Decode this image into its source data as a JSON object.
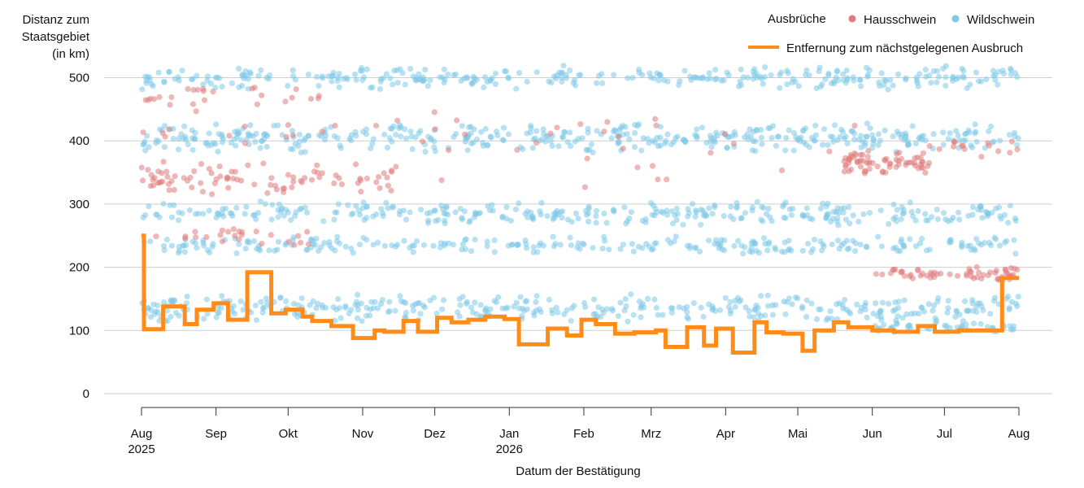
{
  "chart_data": {
    "type": "scatter",
    "ylabel_lines": [
      "Distanz zum",
      "Staatsgebiet",
      "(in km)"
    ],
    "xlabel": "Datum der Bestätigung",
    "ylim": [
      0,
      520
    ],
    "y_ticks": [
      0,
      100,
      200,
      300,
      400,
      500
    ],
    "x_range": [
      "2025-08-01",
      "2026-08-01"
    ],
    "x_ticks": [
      {
        "date": "2025-08-01",
        "label": "Aug",
        "sublabel": "2025"
      },
      {
        "date": "2025-09-01",
        "label": "Sep",
        "sublabel": ""
      },
      {
        "date": "2025-10-01",
        "label": "Okt",
        "sublabel": ""
      },
      {
        "date": "2025-11-01",
        "label": "Nov",
        "sublabel": ""
      },
      {
        "date": "2025-12-01",
        "label": "Dez",
        "sublabel": ""
      },
      {
        "date": "2026-01-01",
        "label": "Jan",
        "sublabel": "2026"
      },
      {
        "date": "2026-02-01",
        "label": "Feb",
        "sublabel": ""
      },
      {
        "date": "2026-03-01",
        "label": "Mrz",
        "sublabel": ""
      },
      {
        "date": "2026-04-01",
        "label": "Apr",
        "sublabel": ""
      },
      {
        "date": "2026-05-01",
        "label": "Mai",
        "sublabel": ""
      },
      {
        "date": "2026-06-01",
        "label": "Jun",
        "sublabel": ""
      },
      {
        "date": "2026-07-01",
        "label": "Jul",
        "sublabel": ""
      },
      {
        "date": "2026-08-01",
        "label": "Aug",
        "sublabel": ""
      }
    ],
    "legend": {
      "title": "Ausbrüche",
      "items": [
        {
          "name": "Hausschwein",
          "color": "#e07b7b"
        },
        {
          "name": "Wildschwein",
          "color": "#7ec8e8"
        }
      ],
      "line_label": "Entfernung zum nächstgelegenen Ausbruch",
      "line_color": "#ff8c1a"
    },
    "series": [
      {
        "name": "Hausschwein",
        "color": "#e07b7b",
        "clusters": [
          {
            "from": "2025-08-01",
            "to": "2025-10-15",
            "y": 470,
            "spread": 20,
            "count": 25
          },
          {
            "from": "2025-08-01",
            "to": "2025-11-15",
            "y": 340,
            "spread": 30,
            "count": 90
          },
          {
            "from": "2025-08-01",
            "to": "2025-10-10",
            "y": 250,
            "spread": 20,
            "count": 25
          },
          {
            "from": "2025-08-01",
            "to": "2025-12-20",
            "y": 420,
            "spread": 30,
            "count": 20
          },
          {
            "from": "2025-11-15",
            "to": "2026-05-31",
            "y": 380,
            "spread": 60,
            "count": 25
          },
          {
            "from": "2026-05-20",
            "to": "2026-06-25",
            "y": 365,
            "spread": 20,
            "count": 70
          },
          {
            "from": "2026-06-01",
            "to": "2026-08-01",
            "y": 190,
            "spread": 12,
            "count": 60
          },
          {
            "from": "2026-06-20",
            "to": "2026-08-01",
            "y": 390,
            "spread": 20,
            "count": 15
          }
        ]
      },
      {
        "name": "Wildschwein",
        "color": "#7ec8e8",
        "clusters": [
          {
            "from": "2025-08-01",
            "to": "2026-08-01",
            "y": 500,
            "spread": 20,
            "count": 320
          },
          {
            "from": "2025-08-01",
            "to": "2026-08-01",
            "y": 405,
            "spread": 25,
            "count": 420
          },
          {
            "from": "2025-08-01",
            "to": "2026-08-01",
            "y": 285,
            "spread": 20,
            "count": 330
          },
          {
            "from": "2025-08-01",
            "to": "2026-08-01",
            "y": 235,
            "spread": 15,
            "count": 260
          },
          {
            "from": "2025-08-01",
            "to": "2026-08-01",
            "y": 135,
            "spread": 25,
            "count": 380
          },
          {
            "from": "2026-06-01",
            "to": "2026-08-01",
            "y": 105,
            "spread": 10,
            "count": 40
          }
        ]
      }
    ],
    "line_steps": [
      [
        "2025-08-01",
        250
      ],
      [
        "2025-08-02",
        102
      ],
      [
        "2025-08-10",
        138
      ],
      [
        "2025-08-19",
        110
      ],
      [
        "2025-08-24",
        133
      ],
      [
        "2025-08-31",
        143
      ],
      [
        "2025-09-06",
        117
      ],
      [
        "2025-09-14",
        192
      ],
      [
        "2025-09-24",
        127
      ],
      [
        "2025-09-30",
        133
      ],
      [
        "2025-10-07",
        122
      ],
      [
        "2025-10-11",
        115
      ],
      [
        "2025-10-19",
        107
      ],
      [
        "2025-10-28",
        88
      ],
      [
        "2025-11-06",
        100
      ],
      [
        "2025-11-10",
        98
      ],
      [
        "2025-11-18",
        115
      ],
      [
        "2025-11-24",
        98
      ],
      [
        "2025-12-02",
        120
      ],
      [
        "2025-12-08",
        113
      ],
      [
        "2025-12-15",
        117
      ],
      [
        "2025-12-22",
        122
      ],
      [
        "2025-12-30",
        118
      ],
      [
        "2026-01-05",
        78
      ],
      [
        "2026-01-17",
        103
      ],
      [
        "2026-01-25",
        92
      ],
      [
        "2026-01-31",
        117
      ],
      [
        "2026-02-06",
        110
      ],
      [
        "2026-02-14",
        95
      ],
      [
        "2026-02-22",
        97
      ],
      [
        "2026-03-03",
        100
      ],
      [
        "2026-03-07",
        74
      ],
      [
        "2026-03-16",
        105
      ],
      [
        "2026-03-23",
        76
      ],
      [
        "2026-03-28",
        103
      ],
      [
        "2026-04-04",
        65
      ],
      [
        "2026-04-13",
        113
      ],
      [
        "2026-04-18",
        97
      ],
      [
        "2026-04-25",
        95
      ],
      [
        "2026-05-03",
        68
      ],
      [
        "2026-05-08",
        100
      ],
      [
        "2026-05-16",
        113
      ],
      [
        "2026-05-22",
        105
      ],
      [
        "2026-06-01",
        100
      ],
      [
        "2026-06-10",
        98
      ],
      [
        "2026-06-20",
        107
      ],
      [
        "2026-06-27",
        98
      ],
      [
        "2026-07-07",
        100
      ],
      [
        "2026-07-12",
        100
      ],
      [
        "2026-07-21",
        100
      ],
      [
        "2026-07-25",
        183
      ],
      [
        "2026-08-01",
        183
      ]
    ]
  }
}
